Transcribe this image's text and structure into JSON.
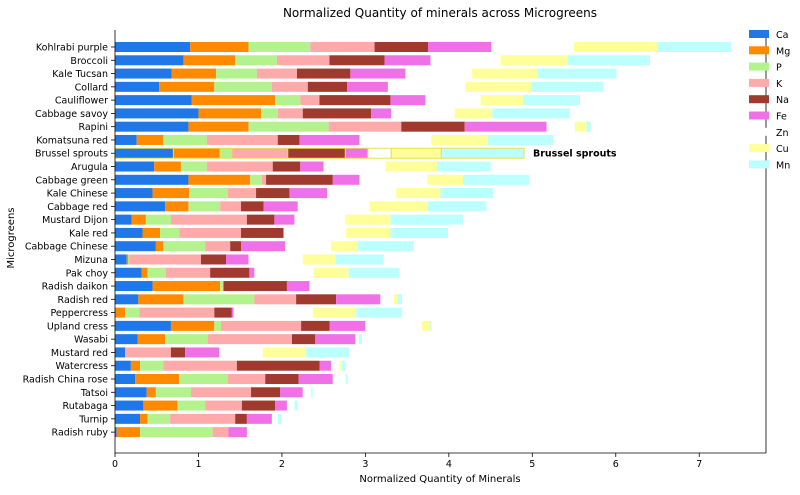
{
  "chart_data": {
    "type": "bar",
    "orientation": "horizontal",
    "stacked": true,
    "title": "Normalized Quantity of minerals across Microgreens",
    "xlabel": "Normalized Quantity of Minerals",
    "ylabel": "Microgreens",
    "xlim": [
      0,
      7.8
    ],
    "xticks": [
      0,
      1,
      2,
      3,
      4,
      5,
      6,
      7
    ],
    "legend_position": "top-right",
    "highlight": "Brussel sprouts",
    "highlight_label": "Brussel sprouts",
    "categories": [
      "Kohlrabi purple",
      "Broccoli",
      "Kale Tucsan",
      "Collard",
      "Cauliflower",
      "Cabbage savoy",
      "Rapini",
      "Komatsuna red",
      "Brussel sprouts",
      "Arugula",
      "Cabbage green",
      "Kale Chinese",
      "Cabbage red",
      "Mustard Dijon",
      "Kale red",
      "Cabbage Chinese",
      "Mizuna",
      "Pak choy",
      "Radish daikon",
      "Radish red",
      "Peppercress",
      "Upland cress",
      "Wasabi",
      "Mustard red",
      "Watercress",
      "Radish China rose",
      "Tatsoi",
      "Rutabaga",
      "Turnip",
      "Radish ruby"
    ],
    "series": [
      {
        "name": "Ca",
        "color": "#1f77e8",
        "values": [
          0.9,
          0.82,
          0.68,
          0.53,
          0.92,
          1.0,
          0.88,
          0.26,
          0.7,
          0.47,
          0.88,
          0.45,
          0.6,
          0.2,
          0.33,
          0.49,
          0.14,
          0.32,
          0.45,
          0.28,
          0.0,
          0.67,
          0.27,
          0.12,
          0.19,
          0.24,
          0.38,
          0.34,
          0.3,
          0.02
        ]
      },
      {
        "name": "Mg",
        "color": "#ff8a00",
        "values": [
          0.7,
          0.62,
          0.53,
          0.66,
          1.0,
          0.75,
          0.72,
          0.32,
          0.56,
          0.32,
          0.74,
          0.44,
          0.28,
          0.17,
          0.21,
          0.09,
          0.02,
          0.07,
          0.81,
          0.54,
          0.12,
          0.52,
          0.33,
          0.0,
          0.11,
          0.53,
          0.11,
          0.41,
          0.09,
          0.28
        ]
      },
      {
        "name": "P",
        "color": "#b3f28c",
        "values": [
          0.74,
          0.5,
          0.49,
          0.69,
          0.3,
          0.2,
          0.96,
          0.52,
          0.14,
          0.31,
          0.14,
          0.46,
          0.38,
          0.3,
          0.23,
          0.5,
          0.01,
          0.22,
          0.04,
          0.85,
          0.17,
          0.08,
          0.51,
          0.0,
          0.28,
          0.58,
          0.42,
          0.33,
          0.27,
          0.87
        ]
      },
      {
        "name": "K",
        "color": "#ffaaaa",
        "values": [
          0.77,
          0.63,
          0.48,
          0.43,
          0.23,
          0.3,
          0.87,
          0.85,
          0.67,
          0.79,
          0.05,
          0.34,
          0.25,
          0.91,
          0.74,
          0.3,
          0.86,
          0.53,
          0.0,
          0.5,
          0.9,
          0.96,
          1.01,
          0.55,
          0.88,
          0.45,
          0.72,
          0.44,
          0.78,
          0.19
        ]
      },
      {
        "name": "Na",
        "color": "#a0392e",
        "values": [
          0.64,
          0.66,
          0.64,
          0.47,
          0.85,
          0.82,
          0.76,
          0.26,
          0.69,
          0.33,
          0.8,
          0.4,
          0.27,
          0.33,
          0.51,
          0.13,
          0.3,
          0.47,
          0.76,
          0.48,
          0.21,
          0.34,
          0.28,
          0.17,
          0.99,
          0.4,
          0.35,
          0.4,
          0.14,
          0.0
        ]
      },
      {
        "name": "Fe",
        "color": "#f070e8",
        "values": [
          0.76,
          0.55,
          0.66,
          0.49,
          0.42,
          0.24,
          0.98,
          0.72,
          0.27,
          0.28,
          0.32,
          0.45,
          0.41,
          0.24,
          0.0,
          0.53,
          0.27,
          0.06,
          0.27,
          0.53,
          0.02,
          0.43,
          0.48,
          0.41,
          0.14,
          0.41,
          0.27,
          0.14,
          0.3,
          0.22
        ]
      },
      {
        "name": "Zn",
        "color": "#ffffff",
        "values": [
          0.99,
          0.84,
          0.8,
          0.93,
          0.66,
          0.76,
          0.34,
          0.86,
          0.28,
          0.74,
          0.81,
          0.83,
          0.86,
          0.61,
          0.75,
          0.55,
          0.65,
          0.71,
          0.0,
          0.16,
          0.95,
          0.68,
          0.04,
          0.52,
          0.1,
          0.15,
          0.1,
          0.09,
          0.07,
          0.0
        ]
      },
      {
        "name": "Cu",
        "color": "#ffff99",
        "values": [
          1.0,
          0.8,
          0.78,
          0.79,
          0.51,
          0.45,
          0.14,
          0.68,
          0.6,
          0.62,
          0.43,
          0.53,
          0.7,
          0.54,
          0.53,
          0.32,
          0.39,
          0.42,
          0.0,
          0.05,
          0.52,
          0.1,
          0.0,
          0.52,
          0.03,
          0.01,
          0.0,
          0.0,
          0.0,
          0.0
        ]
      },
      {
        "name": "Mn",
        "color": "#bbffff",
        "values": [
          0.88,
          0.99,
          0.95,
          0.86,
          0.68,
          0.93,
          0.05,
          0.78,
          0.99,
          0.64,
          0.79,
          0.63,
          0.7,
          0.87,
          0.69,
          0.67,
          0.58,
          0.61,
          0.0,
          0.05,
          0.55,
          0.01,
          0.04,
          0.52,
          0.04,
          0.02,
          0.02,
          0.04,
          0.04,
          0.0
        ]
      }
    ]
  }
}
